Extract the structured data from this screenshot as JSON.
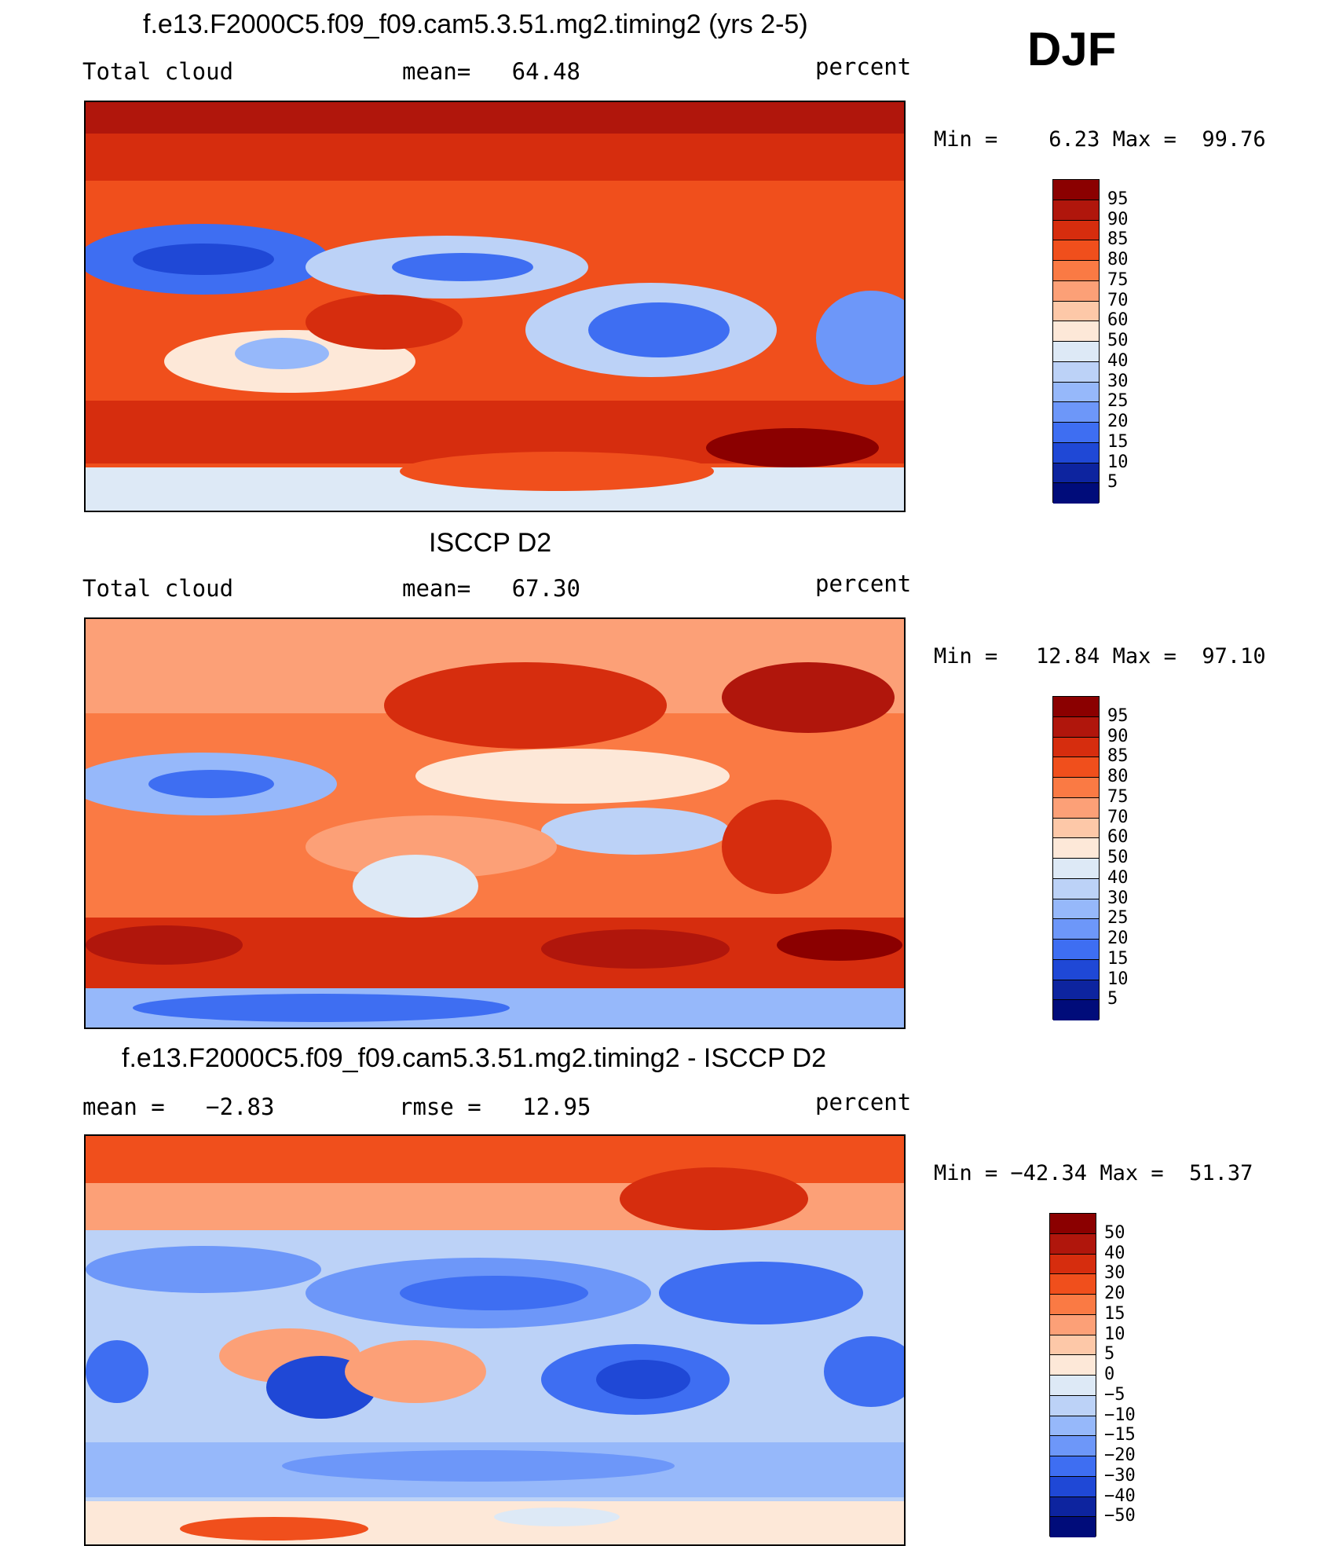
{
  "season": "DJF",
  "panels": [
    {
      "title": "f.e13.F2000C5.f09_f09.cam5.3.51.mg2.timing2 (yrs 2-5)",
      "left_label": "Total cloud",
      "center_label": "mean=   64.48",
      "right_label": "percent",
      "minmax": "Min =    6.23 Max =  99.76",
      "levels": [
        "95",
        "90",
        "85",
        "80",
        "75",
        "70",
        "60",
        "50",
        "40",
        "30",
        "25",
        "20",
        "15",
        "10",
        "5"
      ],
      "colors": [
        "#8b0000",
        "#b0160c",
        "#d62d0e",
        "#f04f1c",
        "#fa7a44",
        "#fca077",
        "#fdc8a8",
        "#fde8d8",
        "#dde9f6",
        "#bcd2f7",
        "#96b8fa",
        "#6d97f9",
        "#3e6ef2",
        "#1f48d6",
        "#0d249f",
        "#000c7a"
      ]
    },
    {
      "title": "ISCCP D2",
      "left_label": "Total cloud",
      "center_label": "mean=   67.30",
      "right_label": "percent",
      "minmax": "Min =   12.84 Max =  97.10",
      "levels": [
        "95",
        "90",
        "85",
        "80",
        "75",
        "70",
        "60",
        "50",
        "40",
        "30",
        "25",
        "20",
        "15",
        "10",
        "5"
      ],
      "colors": [
        "#8b0000",
        "#b0160c",
        "#d62d0e",
        "#f04f1c",
        "#fa7a44",
        "#fca077",
        "#fdc8a8",
        "#fde8d8",
        "#dde9f6",
        "#bcd2f7",
        "#96b8fa",
        "#6d97f9",
        "#3e6ef2",
        "#1f48d6",
        "#0d249f",
        "#000c7a"
      ]
    },
    {
      "title": "f.e13.F2000C5.f09_f09.cam5.3.51.mg2.timing2 - ISCCP D2",
      "left_label": "mean =   −2.83",
      "center_label": "rmse =   12.95",
      "right_label": "percent",
      "minmax": "Min = −42.34 Max =  51.37",
      "levels": [
        "50",
        "40",
        "30",
        "20",
        "15",
        "10",
        "5",
        "0",
        "−5",
        "−10",
        "−15",
        "−20",
        "−30",
        "−40",
        "−50"
      ],
      "colors": [
        "#8b0000",
        "#b0160c",
        "#d62d0e",
        "#f04f1c",
        "#fa7a44",
        "#fca077",
        "#fdc8a8",
        "#fde8d8",
        "#dde9f6",
        "#bcd2f7",
        "#96b8fa",
        "#6d97f9",
        "#3e6ef2",
        "#1f48d6",
        "#0d249f",
        "#000c7a"
      ]
    }
  ]
}
